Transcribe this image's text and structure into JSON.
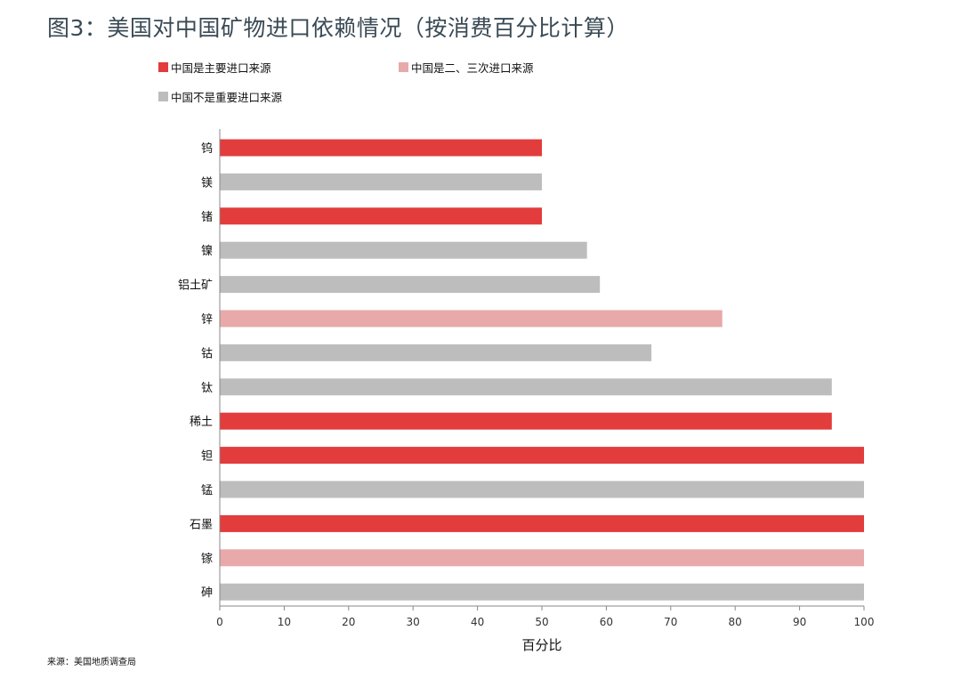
{
  "title": "图3：美国对中国矿物进口依赖情况（按消费百分比计算）",
  "source": "来源：美国地质调查局",
  "colors": {
    "primary": "#e23c3c",
    "secondary": "#e8a9ab",
    "other": "#bdbdbd"
  },
  "legend": [
    {
      "label": "中国是主要进口来源",
      "color": "#e23c3c"
    },
    {
      "label": "中国是二、三次进口来源",
      "color": "#e8a9ab"
    },
    {
      "label": "中国不是重要进口来源",
      "color": "#bdbdbd"
    }
  ],
  "chart_data": {
    "type": "bar",
    "orientation": "horizontal",
    "categories": [
      "钨",
      "镁",
      "锗",
      "镍",
      "铝土矿",
      "锌",
      "钴",
      "钛",
      "稀土",
      "钽",
      "锰",
      "石墨",
      "镓",
      "砷"
    ],
    "values": [
      50,
      50,
      50,
      57,
      59,
      78,
      67,
      95,
      95,
      100,
      100,
      100,
      100,
      100
    ],
    "groups": [
      "primary",
      "other",
      "primary",
      "other",
      "other",
      "secondary",
      "other",
      "other",
      "primary",
      "primary",
      "other",
      "primary",
      "secondary",
      "other"
    ],
    "xlabel": "百分比",
    "xlim": [
      0,
      100
    ],
    "xticks": [
      0,
      10,
      20,
      30,
      40,
      50,
      60,
      70,
      80,
      90,
      100
    ],
    "grid": false,
    "legend_position": "top-left"
  }
}
